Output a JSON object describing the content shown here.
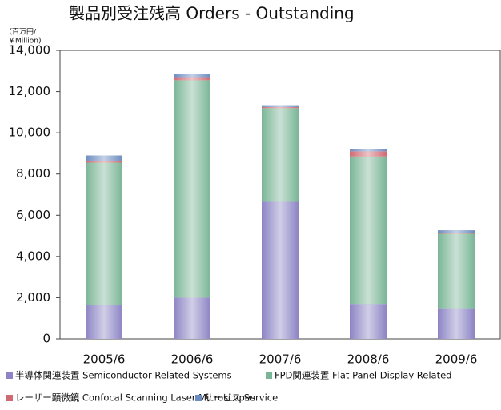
{
  "chart_data": {
    "type": "stacked_bar",
    "title": "製品別受注残高 Orders - Outstanding",
    "unit_label": [
      "（百万円/",
      "￥Million)"
    ],
    "categories": [
      "2005/6",
      "2006/6",
      "2007/6",
      "2008/6",
      "2009/6"
    ],
    "series": [
      {
        "name": "半導体関連装置 Semiconductor Related Systems",
        "color": "#8c84c4",
        "values": [
          1650,
          2000,
          6650,
          1700,
          1450
        ]
      },
      {
        "name": "FPD関連装置 Flat Panel Display Related",
        "color": "#7ab596",
        "values": [
          6900,
          10550,
          4550,
          7150,
          3650
        ]
      },
      {
        "name": "レーザー顕微鏡 Confocal Scanning Laser Microscopes",
        "color": "#d06a72",
        "values": [
          100,
          150,
          50,
          250,
          20
        ]
      },
      {
        "name": "サービス Service",
        "color": "#6c8cc0",
        "values": [
          250,
          150,
          50,
          100,
          150
        ]
      }
    ],
    "ylim": [
      0,
      14000
    ],
    "yticks": [
      0,
      {
        "value": 2000,
        "label": "2,000"
      },
      {
        "value": 4000,
        "label": "4,000"
      },
      {
        "value": 6000,
        "label": "6,000"
      },
      {
        "value": 8000,
        "label": "8,000"
      },
      {
        "value": 10000,
        "label": "10,000"
      },
      {
        "value": 12000,
        "label": "12,000"
      },
      {
        "value": 14000,
        "label": "14,000"
      }
    ],
    "grid": false
  }
}
